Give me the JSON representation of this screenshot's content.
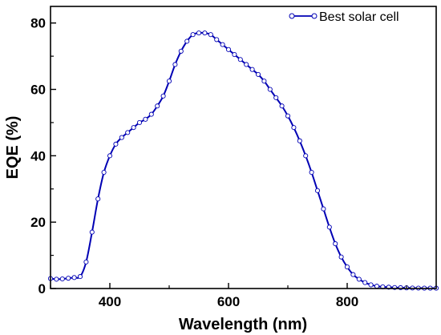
{
  "chart_data": {
    "type": "line",
    "title": "",
    "xlabel": "Wavelength (nm)",
    "ylabel": "EQE (%)",
    "xlim": [
      300,
      950
    ],
    "ylim": [
      0,
      85
    ],
    "xticks": [
      400,
      600,
      800
    ],
    "yticks": [
      0,
      20,
      40,
      60,
      80
    ],
    "x_tick_labels": [
      "400",
      "600",
      "800"
    ],
    "y_tick_labels": [
      "0",
      "20",
      "40",
      "60",
      "80"
    ],
    "grid": false,
    "legend_position": "top-right",
    "series": [
      {
        "name": "Best solar cell",
        "color": "#0000b4",
        "marker": "open-circle",
        "x": [
          300,
          310,
          320,
          330,
          340,
          350,
          360,
          370,
          380,
          390,
          400,
          410,
          420,
          430,
          440,
          450,
          460,
          470,
          480,
          490,
          500,
          510,
          520,
          530,
          540,
          550,
          560,
          570,
          580,
          590,
          600,
          610,
          620,
          630,
          640,
          650,
          660,
          670,
          680,
          690,
          700,
          710,
          720,
          730,
          740,
          750,
          760,
          770,
          780,
          790,
          800,
          810,
          820,
          830,
          840,
          850,
          860,
          870,
          880,
          890,
          900,
          910,
          920,
          930,
          940,
          950
        ],
        "y": [
          3,
          2.8,
          2.9,
          3.1,
          3.3,
          3.6,
          8,
          17,
          27,
          35,
          40,
          43.5,
          45.5,
          47,
          48.5,
          50,
          51,
          52.5,
          55,
          58,
          62.5,
          67.5,
          71.5,
          74.5,
          76.5,
          77,
          77,
          76.5,
          75,
          73.5,
          72,
          70.5,
          69,
          67.5,
          66,
          64.5,
          62.5,
          60,
          57.5,
          55,
          52,
          48.5,
          44.5,
          40,
          35,
          29.5,
          24,
          18.5,
          13.5,
          9.5,
          6.5,
          4.2,
          2.8,
          1.8,
          1.1,
          0.7,
          0.5,
          0.4,
          0.3,
          0.25,
          0.2,
          0.15,
          0.12,
          0.1,
          0.1,
          0.1
        ]
      }
    ]
  }
}
